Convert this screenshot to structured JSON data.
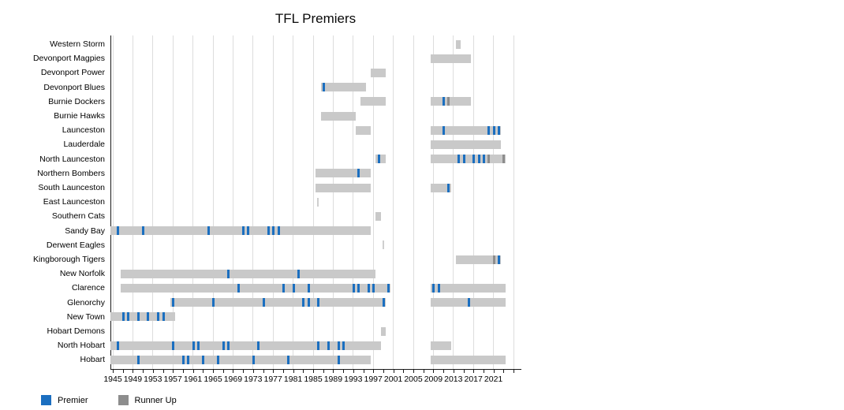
{
  "title": "TFL Premiers",
  "legend": {
    "items": [
      {
        "label": "Premier",
        "color": "#1b6fc0"
      },
      {
        "label": "Runner Up",
        "color": "#8d8d8d"
      }
    ]
  },
  "colors": {
    "premier": "#1b6fc0",
    "runner": "#8d8d8d",
    "bar": "#c9c9c9",
    "grid": "#dddddd",
    "axis": "#1a1a1a"
  },
  "chart_data": {
    "type": "timeline",
    "title": "TFL Premiers",
    "x_axis": {
      "label_years": [
        1945,
        1949,
        1953,
        1957,
        1961,
        1965,
        1969,
        1973,
        1977,
        1981,
        1985,
        1989,
        1993,
        1997,
        2001,
        2005,
        2009,
        2013,
        2017,
        2021
      ],
      "minor_tick_step": 2,
      "min_year": 1945,
      "max_year": 2025,
      "grid": true
    },
    "legend_position": "bottom-left",
    "series_meaning": {
      "bar": "seasons contested",
      "blue_tick": "Premier year",
      "gray_tick": "Runner Up year"
    },
    "teams": [
      {
        "name": "Western Storm",
        "spans": [
          [
            2014,
            2014
          ]
        ],
        "premiers": [],
        "runners": []
      },
      {
        "name": "Devonport Magpies",
        "spans": [
          [
            2009,
            2016
          ]
        ],
        "premiers": [],
        "runners": []
      },
      {
        "name": "Devonport Power",
        "spans": [
          [
            1997,
            1999
          ]
        ],
        "premiers": [],
        "runners": []
      },
      {
        "name": "Devonport Blues",
        "spans": [
          [
            1987,
            1995
          ]
        ],
        "premiers": [
          1987
        ],
        "runners": []
      },
      {
        "name": "Burnie Dockers",
        "spans": [
          [
            1995,
            1999
          ],
          [
            2009,
            2016
          ]
        ],
        "premiers": [
          2011
        ],
        "runners": [
          2012
        ]
      },
      {
        "name": "Burnie Hawks",
        "spans": [
          [
            1987,
            1993
          ]
        ],
        "premiers": [],
        "runners": []
      },
      {
        "name": "Launceston",
        "spans": [
          [
            1994,
            1996
          ],
          [
            2009,
            2022
          ]
        ],
        "premiers": [
          2011,
          2020,
          2021,
          2022
        ],
        "runners": []
      },
      {
        "name": "Lauderdale",
        "spans": [
          [
            2009,
            2022
          ]
        ],
        "premiers": [],
        "runners": []
      },
      {
        "name": "North Launceston",
        "spans": [
          [
            1998,
            1999
          ],
          [
            2009,
            2023
          ]
        ],
        "premiers": [
          1998,
          2014,
          2015,
          2017,
          2018,
          2019
        ],
        "runners": [
          2020,
          2023
        ]
      },
      {
        "name": "Northern Bombers",
        "spans": [
          [
            1986,
            1996
          ]
        ],
        "premiers": [
          1994
        ],
        "runners": []
      },
      {
        "name": "South Launceston",
        "spans": [
          [
            1986,
            1996
          ],
          [
            2009,
            2012
          ]
        ],
        "premiers": [
          2012
        ],
        "runners": []
      },
      {
        "name": "East Launceston",
        "spans": [
          [
            1986,
            1986
          ]
        ],
        "thin": true,
        "premiers": [],
        "runners": []
      },
      {
        "name": "Southern Cats",
        "spans": [
          [
            1998,
            1998
          ]
        ],
        "premiers": [],
        "runners": []
      },
      {
        "name": "Sandy Bay",
        "spans": [
          [
            1945,
            1996
          ]
        ],
        "premiers": [
          1946,
          1951,
          1964,
          1971,
          1972,
          1976,
          1977,
          1978
        ],
        "runners": []
      },
      {
        "name": "Derwent Eagles",
        "spans": [
          [
            1999,
            1999
          ]
        ],
        "thin": true,
        "premiers": [],
        "runners": []
      },
      {
        "name": "Kingborough Tigers",
        "spans": [
          [
            2014,
            2022
          ]
        ],
        "premiers": [
          2022
        ],
        "runners": [
          2021
        ]
      },
      {
        "name": "New Norfolk",
        "spans": [
          [
            1947,
            1997
          ]
        ],
        "premiers": [
          1968,
          1982
        ],
        "runners": []
      },
      {
        "name": "Clarence",
        "spans": [
          [
            1947,
            2000
          ],
          [
            2009,
            2023
          ]
        ],
        "premiers": [
          1970,
          1979,
          1981,
          1984,
          1993,
          1994,
          1996,
          1997,
          2000,
          2009,
          2010
        ],
        "runners": []
      },
      {
        "name": "Glenorchy",
        "spans": [
          [
            1957,
            1999
          ],
          [
            2009,
            2023
          ]
        ],
        "premiers": [
          1957,
          1965,
          1975,
          1983,
          1984,
          1986,
          1999,
          2016
        ],
        "runners": []
      },
      {
        "name": "New Town",
        "spans": [
          [
            1945,
            1957
          ]
        ],
        "premiers": [
          1947,
          1948,
          1950,
          1952,
          1954,
          1955
        ],
        "runners": []
      },
      {
        "name": "Hobart Demons",
        "spans": [
          [
            1999,
            1999
          ]
        ],
        "premiers": [],
        "runners": []
      },
      {
        "name": "North Hobart",
        "spans": [
          [
            1945,
            1998
          ],
          [
            2009,
            2012
          ]
        ],
        "premiers": [
          1946,
          1957,
          1961,
          1962,
          1967,
          1968,
          1974,
          1986,
          1988,
          1990,
          1991
        ],
        "runners": []
      },
      {
        "name": "Hobart",
        "spans": [
          [
            1945,
            1996
          ],
          [
            2009,
            2023
          ]
        ],
        "premiers": [
          1950,
          1959,
          1960,
          1963,
          1966,
          1973,
          1980,
          1990
        ],
        "runners": []
      }
    ]
  }
}
